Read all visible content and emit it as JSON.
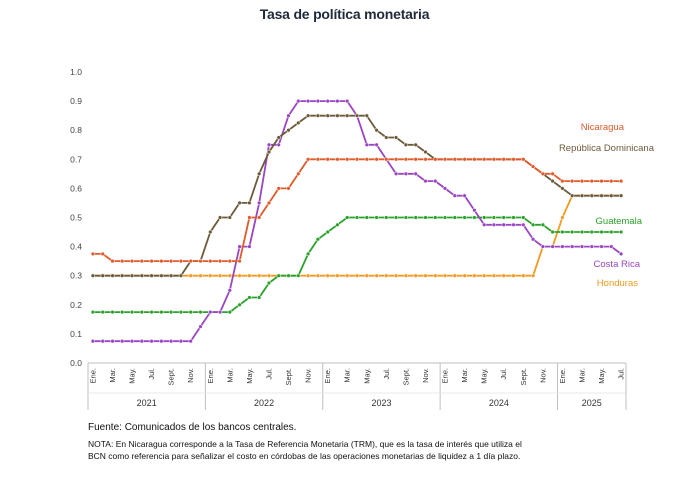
{
  "title": "Tasa de política monetaria",
  "source": "Fuente: Comunicados de los bancos centrales.",
  "note": "NOTA: En Nicaragua corresponde a la Tasa de Referencia Monetaria (TRM), que es la tasa de interés que utiliza el BCN como referencia para señalizar el costo en córdobas de las operaciones monetarias de liquidez a 1 día plazo.",
  "chart_data": {
    "type": "line",
    "title": "Tasa de política monetaria",
    "xlabel": "",
    "ylabel": "",
    "ylim": [
      0,
      1.0
    ],
    "yticks": [
      "0.0",
      "0.1",
      "0.2",
      "0.3",
      "0.4",
      "0.5",
      "0.6",
      "0.7",
      "0.8",
      "0.9",
      "1.0"
    ],
    "grid": false,
    "legend": "inline-right",
    "month_tick_labels": [
      "Ene.",
      "Mar.",
      "May.",
      "Jul.",
      "Sept.",
      "Nov."
    ],
    "years": [
      "2021",
      "2022",
      "2023",
      "2024",
      "2025"
    ],
    "months_per_year": [
      12,
      12,
      12,
      12,
      7
    ],
    "x_start": "2021-01",
    "x_end": "2025-07",
    "series": [
      {
        "name": "Nicaragua",
        "color": "#e05a2b",
        "values": [
          0.375,
          0.375,
          0.35,
          0.35,
          0.35,
          0.35,
          0.35,
          0.35,
          0.35,
          0.35,
          0.35,
          0.35,
          0.35,
          0.35,
          0.35,
          0.35,
          0.5,
          0.5,
          0.55,
          0.6,
          0.6,
          0.65,
          0.7,
          0.7,
          0.7,
          0.7,
          0.7,
          0.7,
          0.7,
          0.7,
          0.7,
          0.7,
          0.7,
          0.7,
          0.7,
          0.7,
          0.7,
          0.7,
          0.7,
          0.7,
          0.7,
          0.7,
          0.7,
          0.7,
          0.7,
          0.675,
          0.65,
          0.65,
          0.625,
          0.625,
          0.625,
          0.625,
          0.625,
          0.625,
          0.625
        ]
      },
      {
        "name": "República Dominicana",
        "color": "#6b5a3a",
        "values": [
          0.3,
          0.3,
          0.3,
          0.3,
          0.3,
          0.3,
          0.3,
          0.3,
          0.3,
          0.3,
          0.35,
          0.35,
          0.45,
          0.5,
          0.5,
          0.55,
          0.55,
          0.65,
          0.725,
          0.775,
          0.8,
          0.825,
          0.85,
          0.85,
          0.85,
          0.85,
          0.85,
          0.85,
          0.85,
          0.8,
          0.775,
          0.775,
          0.75,
          0.75,
          0.725,
          0.7,
          0.7,
          0.7,
          0.7,
          0.7,
          0.7,
          0.7,
          0.7,
          0.7,
          0.7,
          0.675,
          0.65,
          0.625,
          0.6,
          0.575,
          0.575,
          0.575,
          0.575,
          0.575,
          0.575
        ]
      },
      {
        "name": "Guatemala",
        "color": "#2aa12a",
        "values": [
          0.175,
          0.175,
          0.175,
          0.175,
          0.175,
          0.175,
          0.175,
          0.175,
          0.175,
          0.175,
          0.175,
          0.175,
          0.175,
          0.175,
          0.175,
          0.2,
          0.225,
          0.225,
          0.275,
          0.3,
          0.3,
          0.3,
          0.375,
          0.425,
          0.45,
          0.475,
          0.5,
          0.5,
          0.5,
          0.5,
          0.5,
          0.5,
          0.5,
          0.5,
          0.5,
          0.5,
          0.5,
          0.5,
          0.5,
          0.5,
          0.5,
          0.5,
          0.5,
          0.5,
          0.5,
          0.475,
          0.475,
          0.45,
          0.45,
          0.45,
          0.45,
          0.45,
          0.45,
          0.45,
          0.45
        ]
      },
      {
        "name": "Costa Rica",
        "color": "#9a45c2",
        "values": [
          0.075,
          0.075,
          0.075,
          0.075,
          0.075,
          0.075,
          0.075,
          0.075,
          0.075,
          0.075,
          0.075,
          0.125,
          0.175,
          0.175,
          0.25,
          0.4,
          0.4,
          0.55,
          0.75,
          0.75,
          0.85,
          0.9,
          0.9,
          0.9,
          0.9,
          0.9,
          0.9,
          0.85,
          0.75,
          0.75,
          0.7,
          0.65,
          0.65,
          0.65,
          0.625,
          0.625,
          0.6,
          0.575,
          0.575,
          0.525,
          0.475,
          0.475,
          0.475,
          0.475,
          0.475,
          0.425,
          0.4,
          0.4,
          0.4,
          0.4,
          0.4,
          0.4,
          0.4,
          0.4,
          0.375
        ]
      },
      {
        "name": "Honduras",
        "color": "#f29a1f",
        "values": [
          0.3,
          0.3,
          0.3,
          0.3,
          0.3,
          0.3,
          0.3,
          0.3,
          0.3,
          0.3,
          0.3,
          0.3,
          0.3,
          0.3,
          0.3,
          0.3,
          0.3,
          0.3,
          0.3,
          0.3,
          0.3,
          0.3,
          0.3,
          0.3,
          0.3,
          0.3,
          0.3,
          0.3,
          0.3,
          0.3,
          0.3,
          0.3,
          0.3,
          0.3,
          0.3,
          0.3,
          0.3,
          0.3,
          0.3,
          0.3,
          0.3,
          0.3,
          0.3,
          0.3,
          0.3,
          0.3,
          0.4,
          0.4,
          0.5,
          0.575,
          0.575,
          0.575,
          0.575,
          0.575,
          0.575
        ]
      }
    ]
  }
}
